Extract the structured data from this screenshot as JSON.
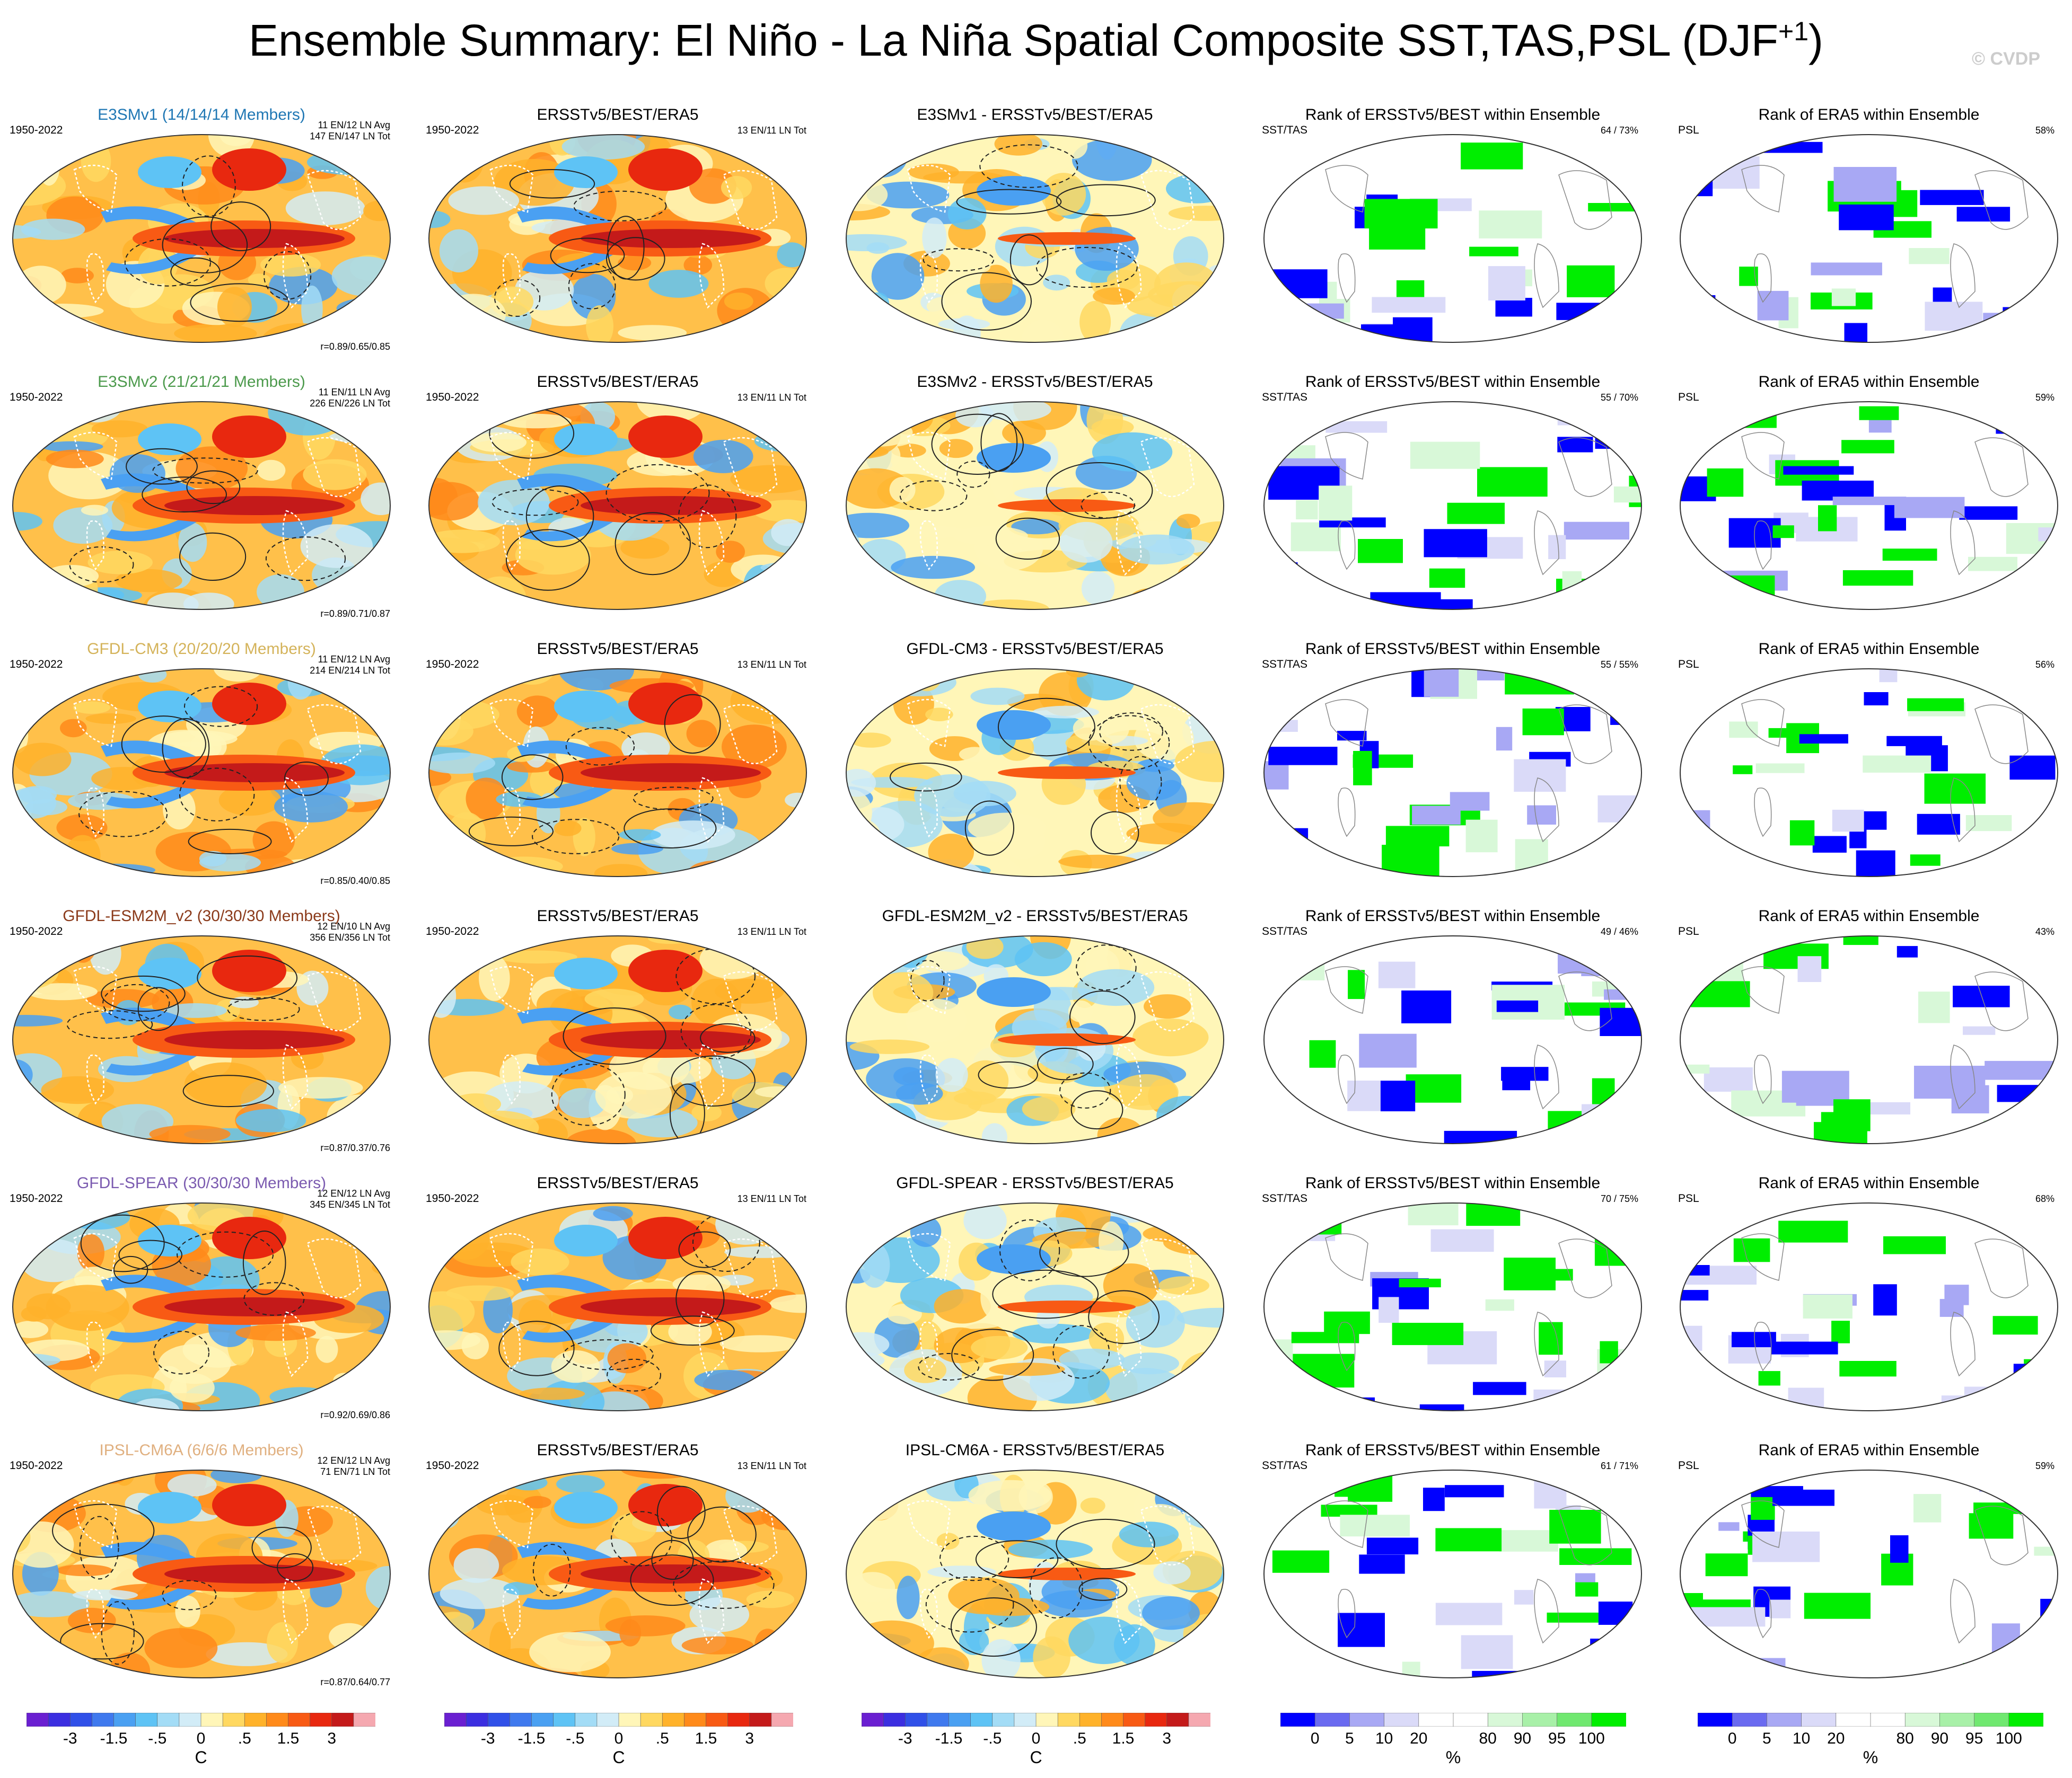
{
  "title": "Ensemble Summary: El Niño - La Niña Spatial Composite SST,TAS,PSL (DJF",
  "title_sup": "+1",
  "title_close": ")",
  "watermark": "© CVDP",
  "chart_data": {
    "type": "heatmap",
    "rows": [
      {
        "model": "E3SMv1 (14/14/14 Members)",
        "model_short": "E3SMv1",
        "model_color": "#1f77b4",
        "years": "1950-2022",
        "ens_counts": [
          "11 EN/12 LN Avg",
          "147 EN/147 LN Tot"
        ],
        "obs_counts": "13 EN/11 LN Tot",
        "corr": "r=0.89/0.65/0.85",
        "diff_title": "E3SMv1 - ERSSTv5/BEST/ERA5",
        "sst_rank": "64 /  73%",
        "psl_rank": "58%"
      },
      {
        "model": "E3SMv2 (21/21/21 Members)",
        "model_short": "E3SMv2",
        "model_color": "#4c9a4c",
        "years": "1950-2022",
        "ens_counts": [
          "11 EN/11 LN Avg",
          "226 EN/226 LN Tot"
        ],
        "obs_counts": "13 EN/11 LN Tot",
        "corr": "r=0.89/0.71/0.87",
        "diff_title": "E3SMv2 - ERSSTv5/BEST/ERA5",
        "sst_rank": "55 /  70%",
        "psl_rank": "59%"
      },
      {
        "model": "GFDL-CM3 (20/20/20 Members)",
        "model_short": "GFDL-CM3",
        "model_color": "#d4b35a",
        "years": "1950-2022",
        "ens_counts": [
          "11 EN/12 LN Avg",
          "214 EN/214 LN Tot"
        ],
        "obs_counts": "13 EN/11 LN Tot",
        "corr": "r=0.85/0.40/0.85",
        "diff_title": "GFDL-CM3 - ERSSTv5/BEST/ERA5",
        "sst_rank": "55 /  55%",
        "psl_rank": "56%"
      },
      {
        "model": "GFDL-ESM2M_v2 (30/30/30 Members)",
        "model_short": "GFDL-ESM2M_v2",
        "model_color": "#8b3a1a",
        "years": "1950-2022",
        "ens_counts": [
          "12 EN/10 LN Avg",
          "356 EN/356 LN Tot"
        ],
        "obs_counts": "13 EN/11 LN Tot",
        "corr": "r=0.87/0.37/0.76",
        "diff_title": "GFDL-ESM2M_v2 - ERSSTv5/BEST/ERA5",
        "sst_rank": "49 /  46%",
        "psl_rank": "43%"
      },
      {
        "model": "GFDL-SPEAR (30/30/30 Members)",
        "model_short": "GFDL-SPEAR",
        "model_color": "#7b5bb0",
        "years": "1950-2022",
        "ens_counts": [
          "12 EN/12 LN Avg",
          "345 EN/345 LN Tot"
        ],
        "obs_counts": "13 EN/11 LN Tot",
        "corr": "r=0.92/0.69/0.86",
        "diff_title": "GFDL-SPEAR - ERSSTv5/BEST/ERA5",
        "sst_rank": "70 /  75%",
        "psl_rank": "68%"
      },
      {
        "model": "IPSL-CM6A (6/6/6 Members)",
        "model_short": "IPSL-CM6A",
        "model_color": "#e0b080",
        "years": "1950-2022",
        "ens_counts": [
          "12 EN/12 LN Avg",
          "71 EN/71 LN Tot"
        ],
        "obs_counts": "13 EN/11 LN Tot",
        "corr": "r=0.87/0.64/0.77",
        "diff_title": "IPSL-CM6A - ERSSTv5/BEST/ERA5",
        "sst_rank": "61 /  71%",
        "psl_rank": "59%"
      }
    ],
    "obs_title": "ERSSTv5/BEST/ERA5",
    "rank_sst_title": "Rank of ERSSTv5/BEST within Ensemble",
    "rank_psl_title": "Rank of ERA5 within Ensemble",
    "rank_sst_tag": "SST/TAS",
    "rank_psl_tag": "PSL",
    "temp_colorbar": {
      "colors": [
        "#6a1fd1",
        "#3b2ee0",
        "#3050e8",
        "#3f79ee",
        "#4aa0f2",
        "#5ec3f5",
        "#a3dcf6",
        "#d2ecf7",
        "#fff6b8",
        "#ffd860",
        "#ffb22a",
        "#ff8a1a",
        "#f85a14",
        "#e8280f",
        "#c41a1a",
        "#f5a8b0"
      ],
      "labels": [
        "-3",
        "-1.5",
        "-.5",
        "0",
        ".5",
        "1.5",
        "3"
      ],
      "label_positions": [
        2,
        4,
        6,
        8,
        10,
        12,
        14
      ],
      "unit": "C"
    },
    "rank_colorbar": {
      "colors": [
        "#0000ff",
        "#6a6af0",
        "#a8a8f4",
        "#dadaf8",
        "#ffffff",
        "#ffffff",
        "#d8f8d8",
        "#a8f0a8",
        "#70e870",
        "#00ee00"
      ],
      "labels": [
        "0",
        "5",
        "10",
        "20",
        "80",
        "90",
        "95",
        "100"
      ],
      "label_positions": [
        1,
        2,
        3,
        4,
        6,
        7,
        8,
        9
      ],
      "unit": "%"
    }
  }
}
